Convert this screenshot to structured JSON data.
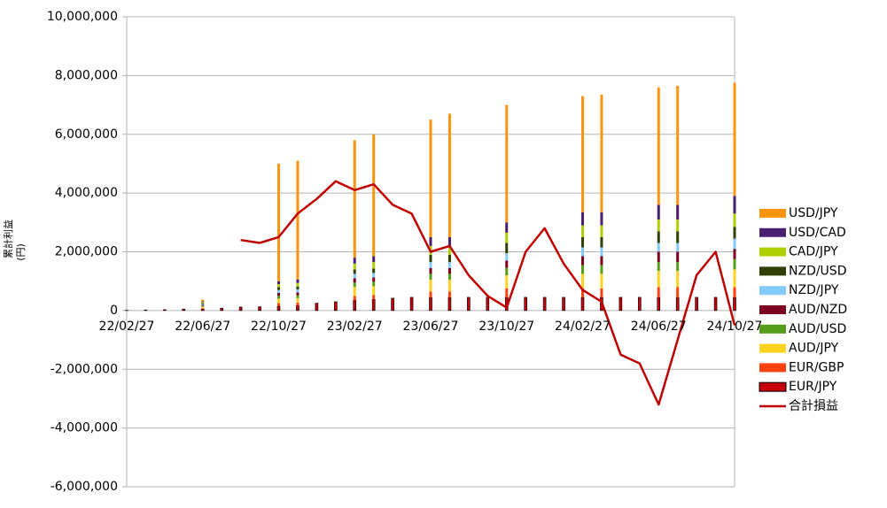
{
  "chart_data": {
    "type": "bar",
    "stacked": true,
    "grid": true,
    "legend": "right",
    "ylabel": [
      "累計利益",
      "(円)"
    ],
    "categories": [
      "22/02/27",
      null,
      null,
      null,
      "22/06/27",
      null,
      null,
      null,
      "22/10/27",
      null,
      null,
      null,
      "23/02/27",
      null,
      null,
      null,
      "23/06/27",
      null,
      null,
      null,
      "23/10/27",
      null,
      null,
      null,
      "24/02/27",
      null,
      null,
      null,
      "24/06/27",
      null,
      null,
      null,
      "24/10/27"
    ],
    "ylim": [
      -6000000,
      10000000
    ],
    "yticks": [
      {
        "value": -6000000,
        "label": "-6,000,000"
      },
      {
        "value": -4000000,
        "label": "-4,000,000"
      },
      {
        "value": -2000000,
        "label": "-2,000,000"
      },
      0,
      {
        "value": 2000000,
        "label": "2,000,000"
      },
      {
        "value": 4000000,
        "label": "4,000,000"
      },
      {
        "value": 6000000,
        "label": "6,000,000"
      },
      {
        "value": 8000000,
        "label": "8,000,000"
      },
      {
        "value": 10000000,
        "label": "10,000,000"
      }
    ],
    "series": [
      {
        "name": "EUR/JPY",
        "color": "#c5000b",
        "values": [
          10000,
          20000,
          30000,
          50000,
          50000,
          80000,
          120000,
          130000,
          150000,
          170000,
          250000,
          300000,
          350000,
          380000,
          420000,
          450000,
          450000,
          450000,
          450000,
          450000,
          450000,
          450000,
          450000,
          450000,
          450000,
          450000,
          450000,
          450000,
          450000,
          450000,
          450000,
          450000,
          450000
        ]
      },
      {
        "name": "EUR/GBP",
        "color": "#ff420e",
        "values": [
          0,
          0,
          0,
          0,
          30000,
          0,
          0,
          0,
          100000,
          100000,
          0,
          0,
          150000,
          150000,
          0,
          0,
          200000,
          200000,
          0,
          0,
          300000,
          0,
          0,
          0,
          300000,
          300000,
          0,
          0,
          350000,
          350000,
          0,
          0,
          350000
        ]
      },
      {
        "name": "AUD/JPY",
        "color": "#ffd320",
        "values": [
          0,
          0,
          0,
          0,
          50000,
          0,
          0,
          0,
          150000,
          150000,
          0,
          0,
          300000,
          300000,
          0,
          0,
          400000,
          400000,
          0,
          0,
          450000,
          0,
          0,
          0,
          500000,
          500000,
          0,
          0,
          550000,
          550000,
          0,
          0,
          600000
        ]
      },
      {
        "name": "AUD/USD",
        "color": "#579d1c",
        "values": [
          0,
          0,
          0,
          0,
          30000,
          0,
          0,
          0,
          100000,
          100000,
          0,
          0,
          150000,
          150000,
          0,
          0,
          200000,
          200000,
          0,
          0,
          250000,
          0,
          0,
          0,
          300000,
          300000,
          0,
          0,
          300000,
          300000,
          0,
          0,
          350000
        ]
      },
      {
        "name": "AUD/NZD",
        "color": "#7e0021",
        "values": [
          0,
          0,
          0,
          0,
          30000,
          0,
          0,
          0,
          100000,
          100000,
          0,
          0,
          150000,
          150000,
          0,
          0,
          200000,
          200000,
          0,
          0,
          250000,
          0,
          0,
          0,
          300000,
          300000,
          0,
          0,
          350000,
          350000,
          0,
          0,
          350000
        ]
      },
      {
        "name": "NZD/JPY",
        "color": "#83caff",
        "values": [
          0,
          0,
          0,
          0,
          30000,
          0,
          0,
          0,
          100000,
          100000,
          0,
          0,
          150000,
          150000,
          0,
          0,
          200000,
          200000,
          0,
          0,
          250000,
          0,
          0,
          0,
          300000,
          300000,
          0,
          0,
          300000,
          300000,
          0,
          0,
          350000
        ]
      },
      {
        "name": "NZD/USD",
        "color": "#314004",
        "values": [
          0,
          0,
          0,
          0,
          30000,
          0,
          0,
          0,
          100000,
          100000,
          0,
          0,
          150000,
          150000,
          0,
          0,
          250000,
          250000,
          0,
          0,
          350000,
          0,
          0,
          0,
          350000,
          350000,
          0,
          0,
          400000,
          400000,
          0,
          0,
          400000
        ]
      },
      {
        "name": "CAD/JPY",
        "color": "#aecf00",
        "values": [
          0,
          0,
          0,
          0,
          40000,
          0,
          0,
          0,
          100000,
          120000,
          0,
          0,
          200000,
          220000,
          0,
          0,
          300000,
          300000,
          0,
          0,
          350000,
          0,
          0,
          0,
          400000,
          400000,
          0,
          0,
          400000,
          400000,
          0,
          0,
          450000
        ]
      },
      {
        "name": "USD/CAD",
        "color": "#4b1f6f",
        "values": [
          0,
          0,
          0,
          0,
          30000,
          0,
          0,
          0,
          100000,
          120000,
          0,
          0,
          200000,
          200000,
          0,
          0,
          300000,
          300000,
          0,
          0,
          350000,
          0,
          0,
          0,
          450000,
          450000,
          0,
          0,
          500000,
          500000,
          0,
          0,
          600000
        ]
      },
      {
        "name": "USD/JPY",
        "color": "#ff950e",
        "values": [
          0,
          0,
          0,
          0,
          50000,
          0,
          0,
          0,
          4000000,
          4040000,
          0,
          0,
          4000000,
          4150000,
          0,
          0,
          4000000,
          4200000,
          0,
          0,
          4000000,
          0,
          0,
          0,
          3950000,
          4000000,
          0,
          0,
          4000000,
          4050000,
          0,
          0,
          3850000
        ]
      },
      {
        "name": "合計損益",
        "type": "line",
        "color": "#c00000",
        "values": [
          null,
          null,
          null,
          null,
          null,
          null,
          2400000,
          2300000,
          2500000,
          3300000,
          3800000,
          4400000,
          4100000,
          4300000,
          3600000,
          3300000,
          2000000,
          2200000,
          1200000,
          500000,
          100000,
          2000000,
          2800000,
          1600000,
          700000,
          300000,
          -1500000,
          -1800000,
          -3200000,
          -1000000,
          1200000,
          2000000,
          -500000
        ]
      }
    ]
  }
}
